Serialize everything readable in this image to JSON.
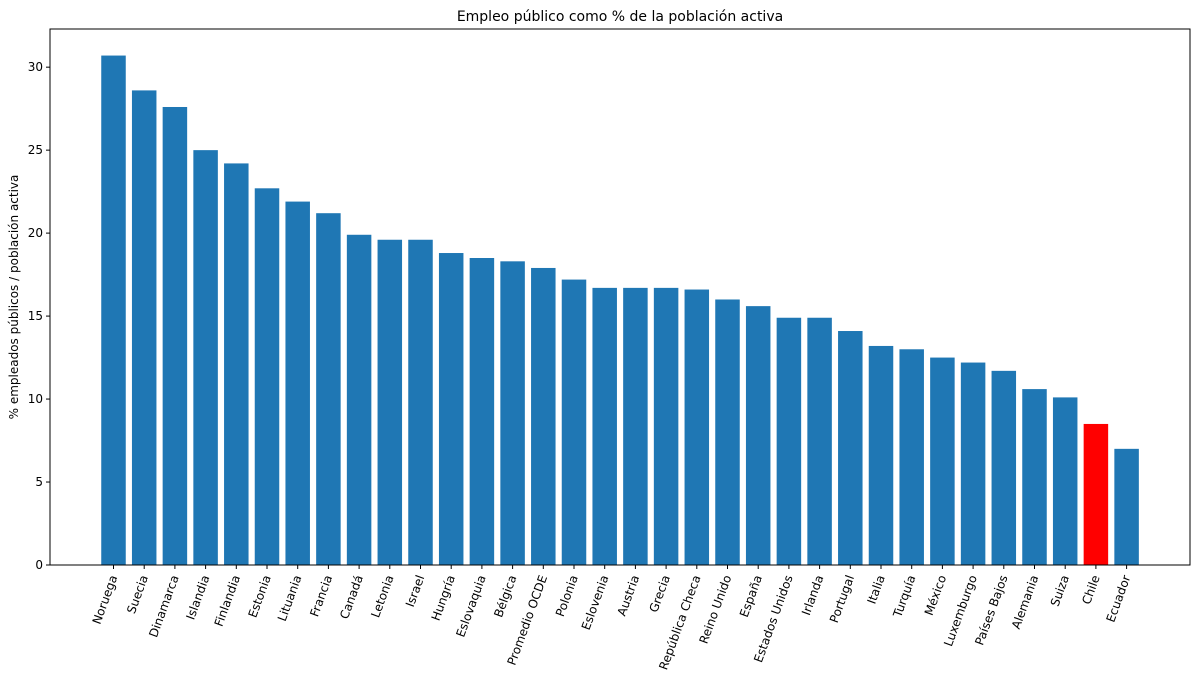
{
  "chart_data": {
    "type": "bar",
    "title": "Empleo público como % de la población activa",
    "xlabel": "",
    "ylabel": "% empleados públicos / población activa",
    "categories": [
      "Noruega",
      "Suecia",
      "Dinamarca",
      "Islandia",
      "Finlandia",
      "Estonia",
      "Lituania",
      "Francia",
      "Canadá",
      "Letonia",
      "Israel",
      "Hungría",
      "Eslovaquia",
      "Bélgica",
      "Promedio OCDE",
      "Polonia",
      "Eslovenia",
      "Austria",
      "Grecia",
      "República Checa",
      "Reino Unido",
      "España",
      "Estados Unidos",
      "Irlanda",
      "Portugal",
      "Italia",
      "Turquía",
      "México",
      "Luxemburgo",
      "Países Bajos",
      "Alemania",
      "Suiza",
      "Chile",
      "Ecuador"
    ],
    "values": [
      30.7,
      28.6,
      27.6,
      25.0,
      24.2,
      22.7,
      21.9,
      21.2,
      19.9,
      19.6,
      19.6,
      18.8,
      18.5,
      18.3,
      17.9,
      17.2,
      16.7,
      16.7,
      16.7,
      16.6,
      16.0,
      15.6,
      14.9,
      14.9,
      14.1,
      13.2,
      13.0,
      12.5,
      12.2,
      11.7,
      10.6,
      10.1,
      8.5,
      7.0
    ],
    "ylim": [
      0,
      32.3
    ],
    "yticks": [
      0,
      5,
      10,
      15,
      20,
      25,
      30
    ],
    "grid": false,
    "colors": {
      "default": "#1f77b4",
      "highlight": "#ff0000"
    },
    "highlight_category": "Chile"
  }
}
